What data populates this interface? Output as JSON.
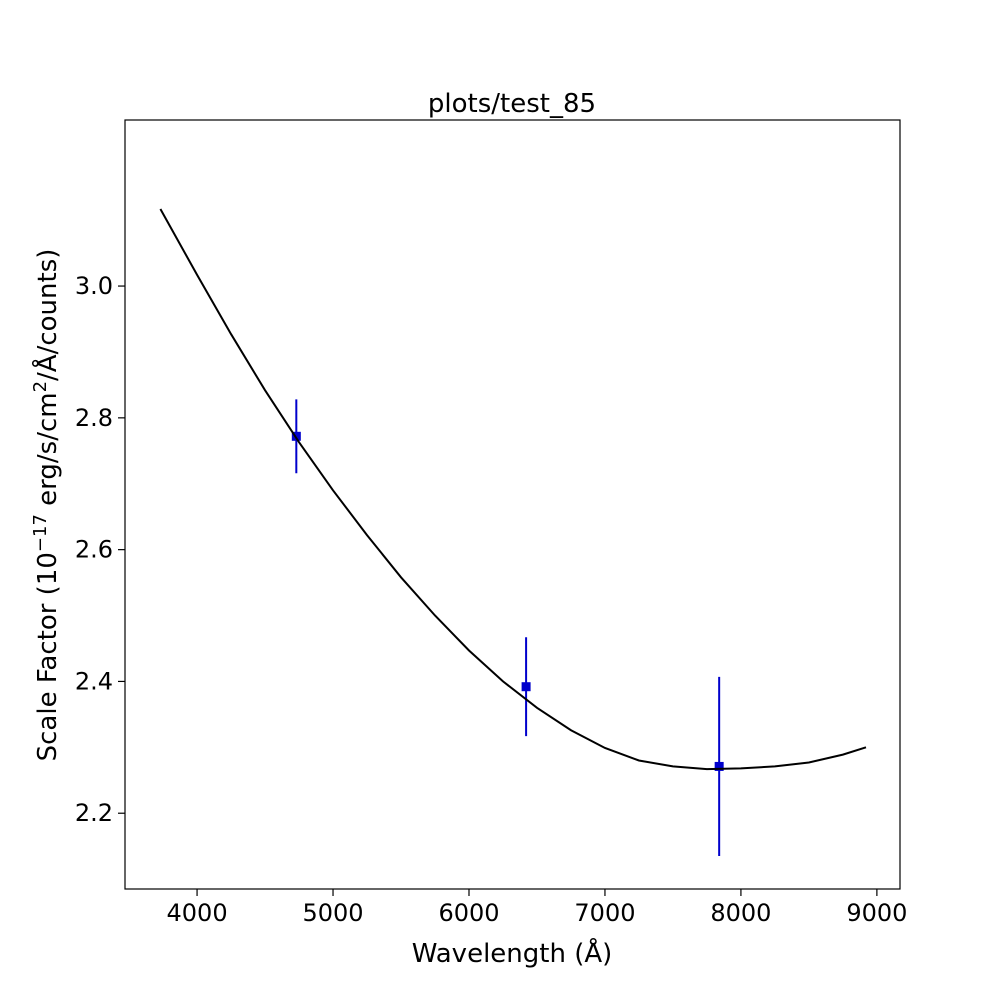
{
  "chart_data": {
    "type": "scatter",
    "title": "plots/test_85",
    "xlabel": "Wavelength (Å)",
    "ylabel": {
      "prefix": "Scale Factor (10",
      "exp1": "−17",
      "mid": " erg/s/cm",
      "exp2": "2",
      "suffix": "/Å/counts)"
    },
    "xlim": [
      3470,
      9170
    ],
    "ylim": [
      2.085,
      3.252
    ],
    "xticks": [
      4000,
      5000,
      6000,
      7000,
      8000,
      9000
    ],
    "yticks": [
      2.2,
      2.4,
      2.6,
      2.8,
      3.0
    ],
    "ytick_labels": [
      "2.2",
      "2.4",
      "2.6",
      "2.8",
      "3.0"
    ],
    "grid": false,
    "series": [
      {
        "kind": "errorbar",
        "color": "#0000cc",
        "marker": "square",
        "points": [
          {
            "x": 4730,
            "y": 2.772,
            "yerr": 0.056
          },
          {
            "x": 6420,
            "y": 2.392,
            "yerr": 0.075
          },
          {
            "x": 7840,
            "y": 2.271,
            "yerr": 0.136
          }
        ]
      },
      {
        "kind": "line",
        "color": "#000000",
        "x": [
          3730,
          4000,
          4250,
          4500,
          4750,
          5000,
          5250,
          5500,
          5750,
          6000,
          6250,
          6500,
          6750,
          7000,
          7250,
          7500,
          7750,
          8000,
          8250,
          8500,
          8750,
          8920
        ],
        "y": [
          3.117,
          3.017,
          2.927,
          2.842,
          2.763,
          2.69,
          2.622,
          2.558,
          2.5,
          2.447,
          2.4,
          2.36,
          2.326,
          2.299,
          2.28,
          2.271,
          2.267,
          2.268,
          2.271,
          2.277,
          2.289,
          2.3
        ]
      }
    ]
  }
}
